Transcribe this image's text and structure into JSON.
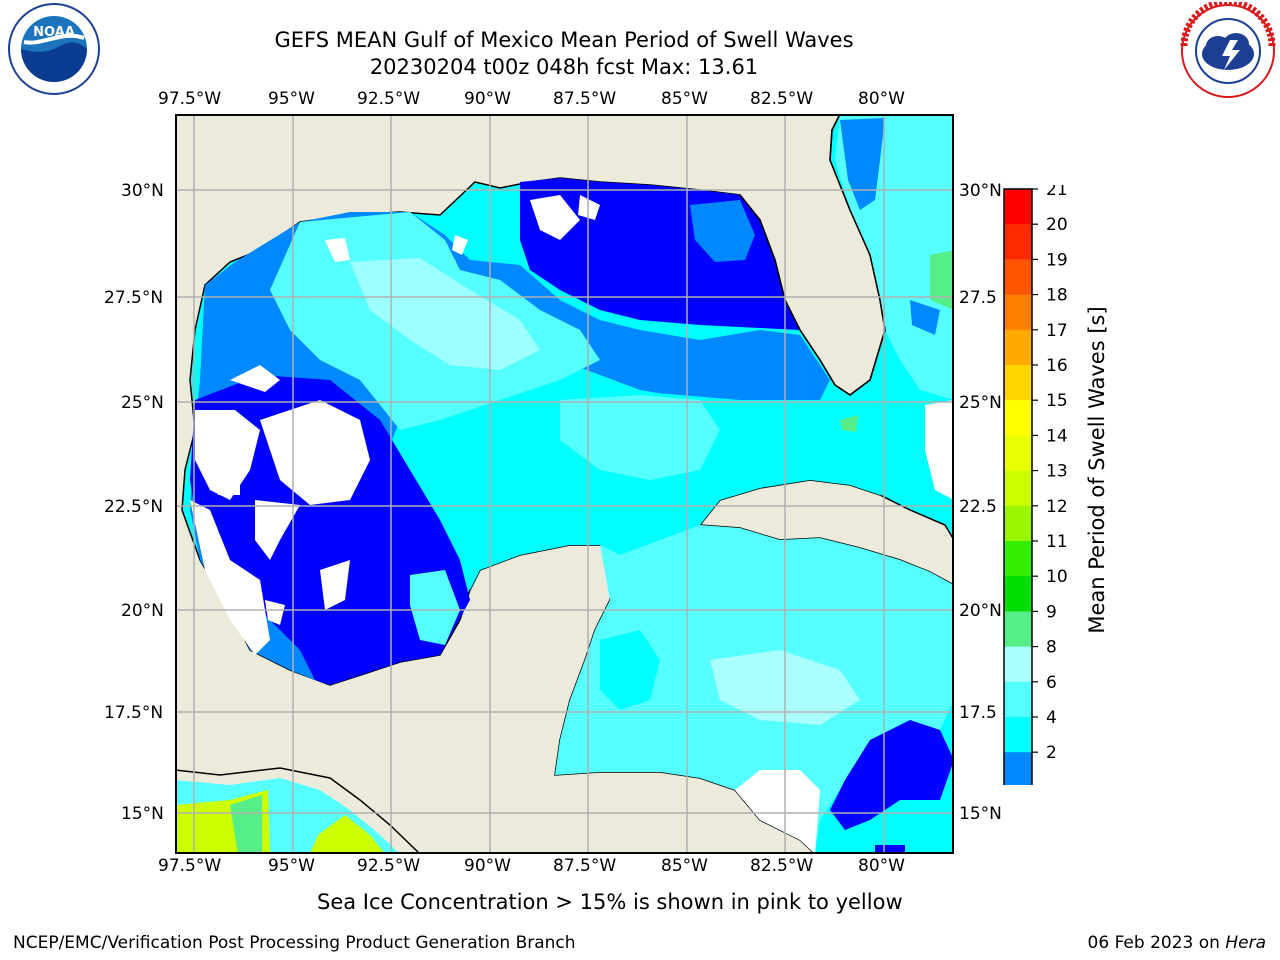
{
  "header": {
    "title": "GEFS MEAN Gulf of Mexico Mean Period of Swell Waves",
    "subtitle": "20230204 t00z 048h fcst   Max: 13.61"
  },
  "logos": {
    "noaa": {
      "text": "NOAA",
      "ring_text": "NATIONAL OCEANIC AND ATMOSPHERIC ADMINISTRATION · U.S. DEPARTMENT OF COMMERCE"
    },
    "nws": {
      "ring_text": "NATIONAL WEATHER SERVICE"
    }
  },
  "axes": {
    "lon_labels": [
      "97.5°W",
      "95°W",
      "92.5°W",
      "90°W",
      "87.5°W",
      "85°W",
      "82.5°W",
      "80°W"
    ],
    "lat_labels_left": [
      "30°N",
      "27.5°N",
      "25°N",
      "22.5°N",
      "20°N",
      "17.5°N",
      "15°N"
    ],
    "lat_labels_right": [
      "30°N",
      "27.5",
      "25°N",
      "22.5",
      "20°N",
      "17.5",
      "15°N"
    ]
  },
  "colorbar": {
    "label": "Mean Period of Swell Waves [s]",
    "ticks": [
      "21",
      "20",
      "19",
      "18",
      "17",
      "16",
      "15",
      "14",
      "13",
      "12",
      "11",
      "10",
      "9",
      "8",
      "6",
      "4",
      "2"
    ],
    "colors_top_to_bottom": [
      "#ff0000",
      "#ff2a00",
      "#ff5500",
      "#ff8000",
      "#ffaa00",
      "#ffd500",
      "#ffff00",
      "#eaff00",
      "#ccff00",
      "#99f500",
      "#33ee00",
      "#00dd00",
      "#55ee88",
      "#aaffff",
      "#55ffff",
      "#00ffff",
      "#0088ff",
      "#0000ff"
    ]
  },
  "map": {
    "colors": {
      "land": "#ecebdb",
      "ocean_white": "#ffffff",
      "deep_blue": "#0000ff",
      "mid_blue": "#0088ff",
      "cyan": "#00ffff",
      "light_cyan": "#55ffff",
      "pale_cyan": "#aaffff",
      "green": "#55ee88",
      "yellow_green": "#ccff00",
      "gridline": "#b0b0b0"
    }
  },
  "note": "Sea Ice Concentration > 15% is shown in pink to yellow",
  "footer": {
    "left": "NCEP/EMC/Verification Post Processing Product Generation Branch",
    "date": "06 Feb 2023 on ",
    "host": "Hera"
  }
}
